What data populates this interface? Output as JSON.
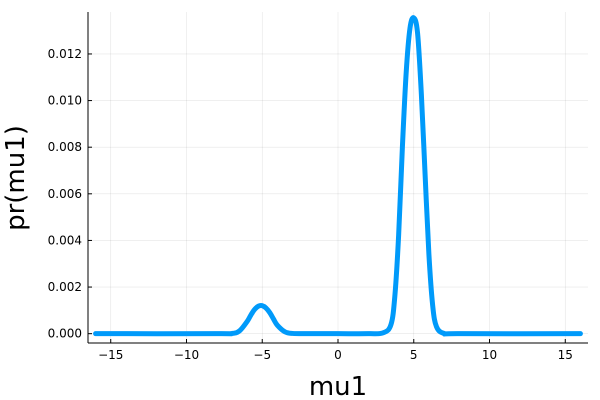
{
  "chart_data": {
    "type": "line",
    "xlabel": "mu1",
    "ylabel": "pr(mu1)",
    "xlim": [
      -16.5,
      16.5
    ],
    "ylim": [
      -0.0004,
      0.0138
    ],
    "xticks": [
      -15,
      -10,
      -5,
      0,
      5,
      10,
      15
    ],
    "xtick_labels": [
      "−15",
      "−10",
      "−5",
      "0",
      "5",
      "10",
      "15"
    ],
    "yticks": [
      0.0,
      0.002,
      0.004,
      0.006,
      0.008,
      0.01,
      0.012
    ],
    "ytick_labels": [
      "0.000",
      "0.002",
      "0.004",
      "0.006",
      "0.008",
      "0.010",
      "0.012"
    ],
    "grid": true,
    "legend": "none",
    "series": [
      {
        "color": "#009AFA",
        "x": [
          -16,
          -8,
          -7,
          -6.5,
          -6,
          -5.75,
          -5.5,
          -5.25,
          -5,
          -4.75,
          -4.5,
          -4.25,
          -4,
          -3.5,
          -3,
          -2,
          0,
          2,
          3,
          3.5,
          3.75,
          4,
          4.25,
          4.5,
          4.75,
          5,
          5.25,
          5.5,
          5.75,
          6,
          6.25,
          6.5,
          7,
          8,
          16
        ],
        "y": [
          0.0,
          0.0,
          1e-05,
          0.00012,
          0.00052,
          0.0008,
          0.00104,
          0.00118,
          0.0012,
          0.0011,
          0.0009,
          0.00062,
          0.00036,
          8e-05,
          1e-05,
          0.0,
          0.0,
          0.0,
          4e-05,
          0.0004,
          0.0016,
          0.0042,
          0.008,
          0.0112,
          0.0131,
          0.01355,
          0.0129,
          0.0103,
          0.0068,
          0.0034,
          0.0012,
          0.0003,
          1e-05,
          0.0,
          0.0
        ]
      }
    ]
  }
}
